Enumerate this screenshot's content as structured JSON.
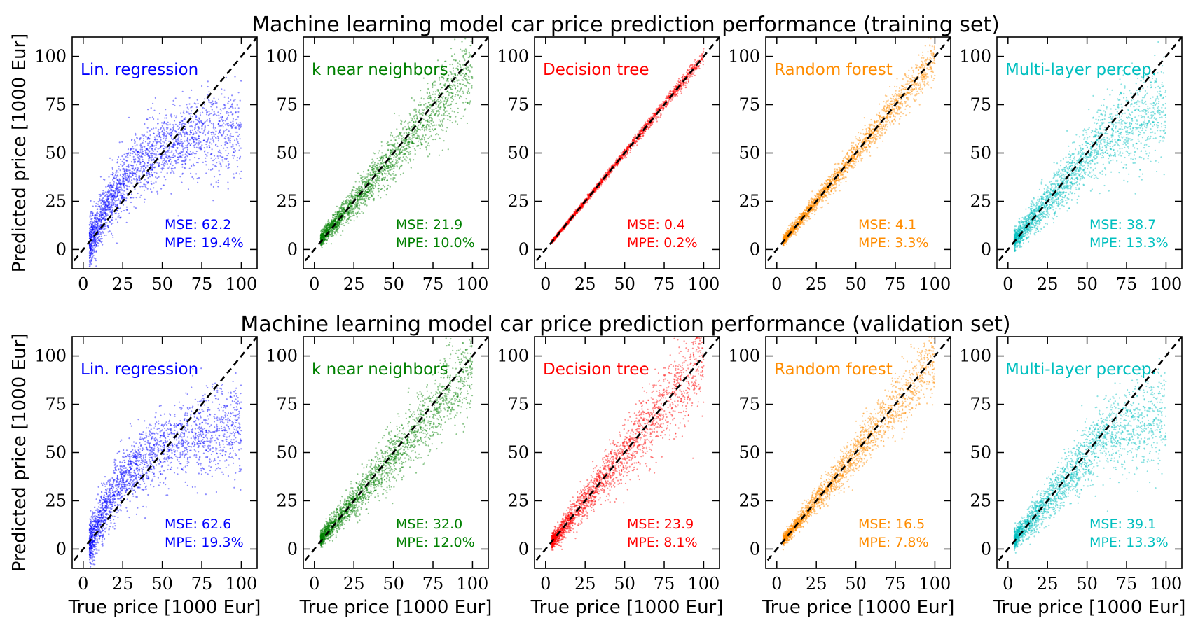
{
  "rows": [
    {
      "title": "Machine learning model car price prediction performance (training set)"
    },
    {
      "title": "Machine learning model car price prediction performance (validation set)"
    }
  ],
  "xlabel": "True price [1000 Eur]",
  "ylabel": "Predicted price [1000 Eur]",
  "mse_prefix": "MSE: ",
  "mpe_prefix": "MPE: ",
  "chart_data": [
    {
      "type": "scatter",
      "set": "training",
      "model": "Lin. regression",
      "color": "#0000ff",
      "mse": "62.2",
      "mpe": "19.4%",
      "xlim": [
        -7,
        110
      ],
      "ylim": [
        -10,
        110
      ],
      "ticks": [
        0,
        25,
        50,
        75,
        100
      ],
      "reference_line": "y = x (dashed black)"
    },
    {
      "type": "scatter",
      "set": "training",
      "model": "k near neighbors",
      "color": "#008000",
      "mse": "21.9",
      "mpe": "10.0%",
      "xlim": [
        -7,
        110
      ],
      "ylim": [
        -10,
        110
      ],
      "ticks": [
        0,
        25,
        50,
        75,
        100
      ],
      "reference_line": "y = x (dashed black)"
    },
    {
      "type": "scatter",
      "set": "training",
      "model": "Decision tree",
      "color": "#ff0000",
      "mse": "0.4",
      "mpe": "0.2%",
      "xlim": [
        -7,
        110
      ],
      "ylim": [
        -10,
        110
      ],
      "ticks": [
        0,
        25,
        50,
        75,
        100
      ],
      "reference_line": "y = x (dashed black)"
    },
    {
      "type": "scatter",
      "set": "training",
      "model": "Random forest",
      "color": "#ff8c00",
      "mse": "4.1",
      "mpe": "3.3%",
      "xlim": [
        -7,
        110
      ],
      "ylim": [
        -10,
        110
      ],
      "ticks": [
        0,
        25,
        50,
        75,
        100
      ],
      "reference_line": "y = x (dashed black)"
    },
    {
      "type": "scatter",
      "set": "training",
      "model": "Multi-layer percep.",
      "color": "#00bfbf",
      "mse": "38.7",
      "mpe": "13.3%",
      "xlim": [
        -7,
        110
      ],
      "ylim": [
        -10,
        110
      ],
      "ticks": [
        0,
        25,
        50,
        75,
        100
      ],
      "reference_line": "y = x (dashed black)"
    },
    {
      "type": "scatter",
      "set": "validation",
      "model": "Lin. regression",
      "color": "#0000ff",
      "mse": "62.6",
      "mpe": "19.3%",
      "xlim": [
        -7,
        110
      ],
      "ylim": [
        -10,
        110
      ],
      "ticks": [
        0,
        25,
        50,
        75,
        100
      ],
      "reference_line": "y = x (dashed black)"
    },
    {
      "type": "scatter",
      "set": "validation",
      "model": "k near neighbors",
      "color": "#008000",
      "mse": "32.0",
      "mpe": "12.0%",
      "xlim": [
        -7,
        110
      ],
      "ylim": [
        -10,
        110
      ],
      "ticks": [
        0,
        25,
        50,
        75,
        100
      ],
      "reference_line": "y = x (dashed black)"
    },
    {
      "type": "scatter",
      "set": "validation",
      "model": "Decision tree",
      "color": "#ff0000",
      "mse": "23.9",
      "mpe": "8.1%",
      "xlim": [
        -7,
        110
      ],
      "ylim": [
        -10,
        110
      ],
      "ticks": [
        0,
        25,
        50,
        75,
        100
      ],
      "reference_line": "y = x (dashed black)"
    },
    {
      "type": "scatter",
      "set": "validation",
      "model": "Random forest",
      "color": "#ff8c00",
      "mse": "16.5",
      "mpe": "7.8%",
      "xlim": [
        -7,
        110
      ],
      "ylim": [
        -10,
        110
      ],
      "ticks": [
        0,
        25,
        50,
        75,
        100
      ],
      "reference_line": "y = x (dashed black)"
    },
    {
      "type": "scatter",
      "set": "validation",
      "model": "Multi-layer percep.",
      "color": "#00bfbf",
      "mse": "39.1",
      "mpe": "13.3%",
      "xlim": [
        -7,
        110
      ],
      "ylim": [
        -10,
        110
      ],
      "ticks": [
        0,
        25,
        50,
        75,
        100
      ],
      "reference_line": "y = x (dashed black)"
    }
  ]
}
